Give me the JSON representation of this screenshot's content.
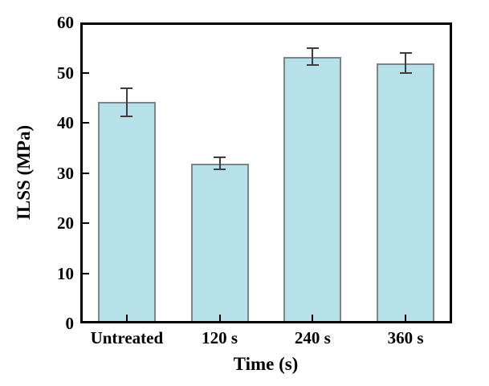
{
  "chart_data": {
    "type": "bar",
    "categories": [
      "Untreated",
      "120 s",
      "240 s",
      "360 s"
    ],
    "values": [
      44.1,
      31.9,
      53.2,
      51.9
    ],
    "errors": [
      2.8,
      1.2,
      1.7,
      2.0
    ],
    "title": "",
    "xlabel": "Time (s)",
    "ylabel": "ILSS (MPa)",
    "ylim": [
      0,
      60
    ],
    "yticks": [
      0,
      10,
      20,
      30,
      40,
      50,
      60
    ],
    "grid": false,
    "legend": "none",
    "tick_direction": "in",
    "colors": {
      "bar_fill": "#b6e1e9",
      "bar_edge": "#7a868a",
      "error_bar": "#3d3d3d",
      "frame": "#000000",
      "background": "#ffffff",
      "text": "#000000"
    }
  }
}
